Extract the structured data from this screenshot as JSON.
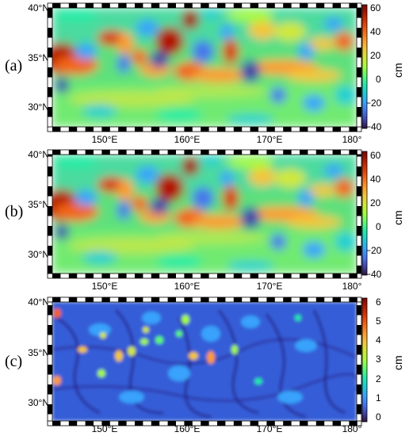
{
  "panels": [
    {
      "label": "(a)",
      "yticks": [
        "40°N",
        "35°N",
        "30°N"
      ],
      "xticks": [
        "150°E",
        "160°E",
        "170°E",
        "180°"
      ],
      "colorbar": {
        "unit": "cm",
        "ticks": [
          "60",
          "40",
          "20",
          "0",
          "−20",
          "−40"
        ],
        "range": [
          -45,
          62
        ]
      }
    },
    {
      "label": "(b)",
      "yticks": [
        "40°N",
        "35°N",
        "30°N"
      ],
      "xticks": [
        "150°E",
        "160°E",
        "170°E",
        "180°"
      ],
      "colorbar": {
        "unit": "cm",
        "ticks": [
          "60",
          "40",
          "20",
          "0",
          "−20",
          "−40"
        ],
        "range": [
          -45,
          62
        ]
      }
    },
    {
      "label": "(c)",
      "yticks": [
        "40°N",
        "35°N",
        "30°N"
      ],
      "xticks": [
        "150°E",
        "160°E",
        "170°E",
        "180°"
      ],
      "colorbar": {
        "unit": "cm",
        "ticks": [
          "6",
          "5",
          "4",
          "3",
          "2",
          "1",
          "0"
        ],
        "range": [
          -0.5,
          6.2
        ]
      }
    }
  ],
  "colormap": {
    "name": "turbo",
    "stops": [
      "#30123b",
      "#4145ab",
      "#4675ed",
      "#39a2fc",
      "#1bcfd4",
      "#24eca6",
      "#61fc6c",
      "#a4fc3b",
      "#d1e834",
      "#f3c63a",
      "#fe9b2d",
      "#f36315",
      "#d93806",
      "#b11901",
      "#7a0403"
    ]
  }
}
